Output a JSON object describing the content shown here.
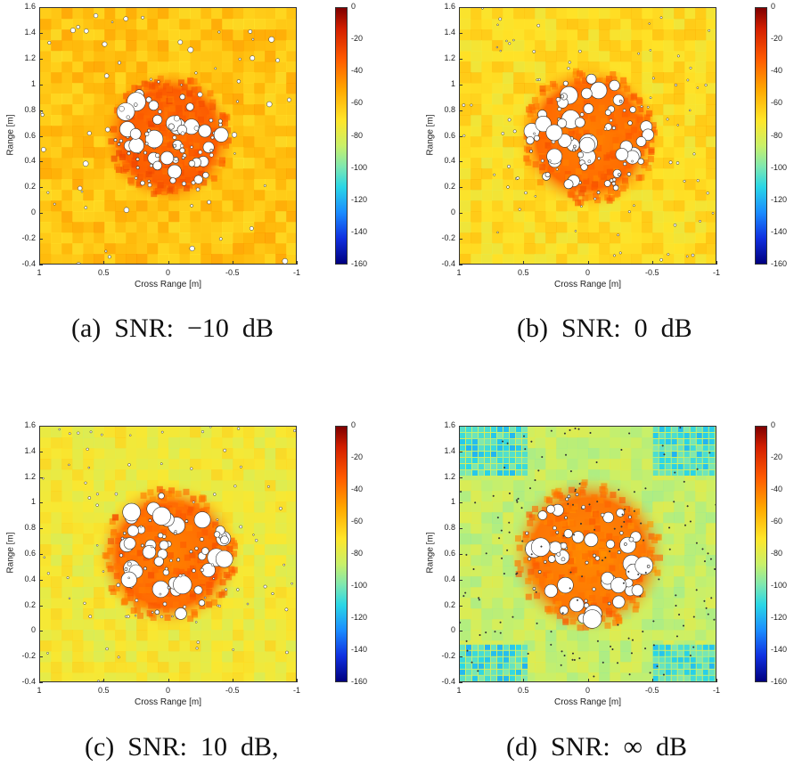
{
  "colormap": [
    "#7f0000",
    "#d21e00",
    "#ff5a00",
    "#ffa800",
    "#ffe62a",
    "#c8f06a",
    "#7fe8b0",
    "#2ad6e6",
    "#1a8cff",
    "#1030e0",
    "#00007f"
  ],
  "chart_data": [
    {
      "type": "heatmap",
      "title": "",
      "caption": "(a)  SNR:  −10  dB",
      "xlabel": "Cross Range [m]",
      "ylabel": "Range [m]",
      "xlim": [
        1,
        -1
      ],
      "ylim": [
        -0.4,
        1.6
      ],
      "xticks": [
        "1",
        "0.5",
        "0",
        "-0.5",
        "-1"
      ],
      "yticks": [
        "1.6",
        "1.4",
        "1.2",
        "1",
        "0.8",
        "0.6",
        "0.4",
        "0.2",
        "0",
        "-0.2",
        "-0.4"
      ],
      "colorbar_range": [
        -160,
        0
      ],
      "colorbar_ticks": [
        "0",
        "-20",
        "-40",
        "-60",
        "-80",
        "-100",
        "-120",
        "-140",
        "-160"
      ],
      "background_level_db": -55,
      "cluster_level_db": -35,
      "cluster_center": [
        0.0,
        0.6
      ],
      "cluster_radius_m": 0.5
    },
    {
      "type": "heatmap",
      "title": "",
      "caption": "(b)  SNR:  0  dB",
      "xlabel": "Cross Range [m]",
      "ylabel": "Range [m]",
      "xlim": [
        1,
        -1
      ],
      "ylim": [
        -0.4,
        1.6
      ],
      "xticks": [
        "1",
        "0.5",
        "0",
        "-0.5",
        "-1"
      ],
      "yticks": [
        "1.6",
        "1.4",
        "1.2",
        "1",
        "0.8",
        "0.6",
        "0.4",
        "0.2",
        "0",
        "-0.2",
        "-0.4"
      ],
      "colorbar_range": [
        -160,
        0
      ],
      "colorbar_ticks": [
        "0",
        "-20",
        "-40",
        "-60",
        "-80",
        "-100",
        "-120",
        "-140",
        "-160"
      ],
      "background_level_db": -62,
      "cluster_level_db": -38,
      "cluster_center": [
        0.0,
        0.6
      ],
      "cluster_radius_m": 0.55
    },
    {
      "type": "heatmap",
      "title": "",
      "caption": "(c)  SNR:  10  dB,",
      "xlabel": "Cross Range [m]",
      "ylabel": "Range [m]",
      "xlim": [
        1,
        -1
      ],
      "ylim": [
        -0.4,
        1.6
      ],
      "xticks": [
        "1",
        "0.5",
        "0",
        "-0.5",
        "-1"
      ],
      "yticks": [
        "1.6",
        "1.4",
        "1.2",
        "1",
        "0.8",
        "0.6",
        "0.4",
        "0.2",
        "0",
        "-0.2",
        "-0.4"
      ],
      "colorbar_range": [
        -160,
        0
      ],
      "colorbar_ticks": [
        "0",
        "-20",
        "-40",
        "-60",
        "-80",
        "-100",
        "-120",
        "-140",
        "-160"
      ],
      "background_level_db": -68,
      "cluster_level_db": -38,
      "cluster_center": [
        0.0,
        0.6
      ],
      "cluster_radius_m": 0.55
    },
    {
      "type": "heatmap",
      "title": "",
      "caption": "(d)  SNR:  ∞  dB",
      "xlabel": "Cross Range [m]",
      "ylabel": "Range [m]",
      "xlim": [
        1,
        -1
      ],
      "ylim": [
        -0.4,
        1.6
      ],
      "xticks": [
        "1",
        "0.5",
        "0",
        "-0.5",
        "-1"
      ],
      "yticks": [
        "1.6",
        "1.4",
        "1.2",
        "1",
        "0.8",
        "0.6",
        "0.4",
        "0.2",
        "0",
        "-0.2",
        "-0.4"
      ],
      "colorbar_range": [
        -160,
        0
      ],
      "colorbar_ticks": [
        "0",
        "-20",
        "-40",
        "-60",
        "-80",
        "-100",
        "-120",
        "-140",
        "-160"
      ],
      "background_level_db": -80,
      "cluster_level_db": -40,
      "cluster_center": [
        0.0,
        0.6
      ],
      "cluster_radius_m": 0.6
    }
  ]
}
